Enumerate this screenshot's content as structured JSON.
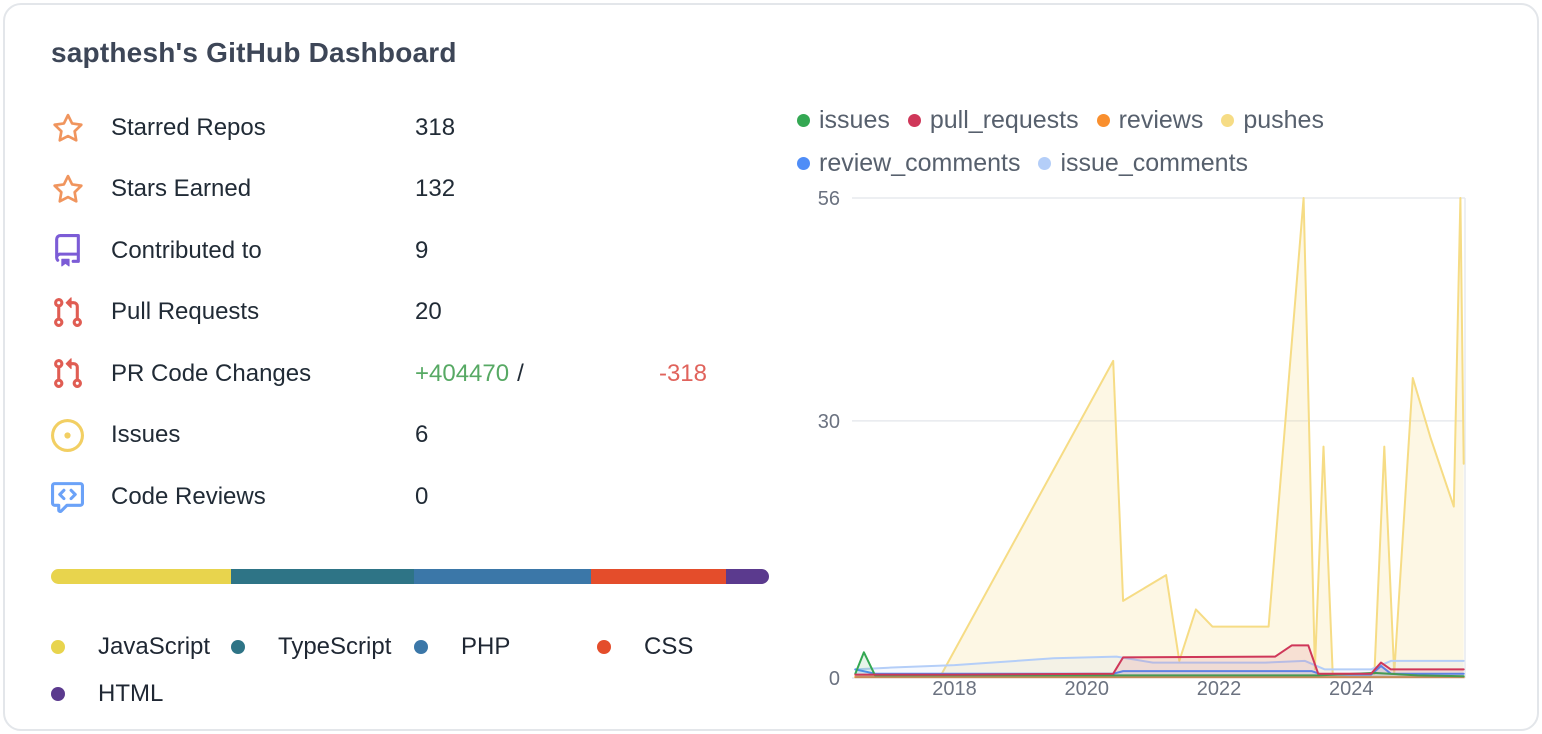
{
  "card": {
    "title": "sapthesh's GitHub Dashboard"
  },
  "stats": {
    "additions_color": "#57a964",
    "deletions_color": "#e0635c",
    "items": [
      {
        "label": "Starred Repos",
        "value": "318",
        "icon": "star-icon",
        "color": "#f0955e"
      },
      {
        "label": "Stars Earned",
        "value": "132",
        "icon": "star-icon",
        "color": "#f0955e"
      },
      {
        "label": "Contributed to",
        "value": "9",
        "icon": "repo-icon",
        "color": "#7c5cd6"
      },
      {
        "label": "Pull Requests",
        "value": "20",
        "icon": "git-pull-request-icon",
        "color": "#e05d53"
      },
      {
        "label": "PR Code Changes",
        "icon": "git-pull-request-icon",
        "color": "#e05d53",
        "additions": "+404470",
        "separator": "/",
        "deletions": "-318"
      },
      {
        "label": "Issues",
        "value": "6",
        "icon": "issue-icon",
        "color": "#f2cf63"
      },
      {
        "label": "Code Reviews",
        "value": "0",
        "icon": "code-review-icon",
        "color": "#6ba2f8"
      }
    ]
  },
  "languages": {
    "bar": [
      {
        "name": "JavaScript",
        "color": "#e8d44d",
        "percent": 25.1
      },
      {
        "name": "TypeScript",
        "color": "#2e7486",
        "percent": 25.5
      },
      {
        "name": "PHP",
        "color": "#3b77a8",
        "percent": 24.6
      },
      {
        "name": "CSS",
        "color": "#e44d2b",
        "percent": 18.8
      },
      {
        "name": "HTML",
        "color": "#5b3a8e",
        "percent": 6.0
      }
    ]
  },
  "chart_data": {
    "type": "area",
    "title": "",
    "xlabel": "",
    "ylabel": "",
    "xlim": [
      2016.45,
      2025.72
    ],
    "ylim": [
      0,
      56
    ],
    "yticks": [
      0,
      30,
      56
    ],
    "xticks": [
      2018,
      2020,
      2022,
      2024
    ],
    "grid": true,
    "legend_position": "top",
    "draw_order": [
      "pushes",
      "reviews",
      "issue_comments",
      "review_comments",
      "issues",
      "pull_requests"
    ],
    "series": [
      {
        "name": "issues",
        "color": "#34a853",
        "fill_opacity": 0.12,
        "points": [
          [
            2016.5,
            0.5
          ],
          [
            2016.63,
            3
          ],
          [
            2016.8,
            0.3
          ],
          [
            2018,
            0.3
          ],
          [
            2020,
            0.3
          ],
          [
            2022,
            0.3
          ],
          [
            2023.5,
            0.3
          ],
          [
            2024.35,
            0.6
          ],
          [
            2025,
            0.3
          ],
          [
            2025.7,
            0.2
          ]
        ]
      },
      {
        "name": "pull_requests",
        "color": "#cf3759",
        "fill_opacity": 0.12,
        "points": [
          [
            2016.5,
            0.4
          ],
          [
            2018,
            0.4
          ],
          [
            2020.4,
            0.5
          ],
          [
            2020.55,
            2.4
          ],
          [
            2022.85,
            2.5
          ],
          [
            2023.1,
            3.8
          ],
          [
            2023.35,
            3.8
          ],
          [
            2023.5,
            0.5
          ],
          [
            2024.3,
            0.5
          ],
          [
            2024.45,
            1.8
          ],
          [
            2024.6,
            1
          ],
          [
            2025.7,
            1
          ]
        ]
      },
      {
        "name": "reviews",
        "color": "#f98f2e",
        "fill_opacity": 0.12,
        "points": [
          [
            2016.5,
            0.1
          ],
          [
            2025.7,
            0.1
          ]
        ]
      },
      {
        "name": "pushes",
        "color": "#f6dc85",
        "fill_opacity": 0.22,
        "points": [
          [
            2016.5,
            0.2
          ],
          [
            2017.8,
            0.4
          ],
          [
            2020.4,
            37
          ],
          [
            2020.55,
            9
          ],
          [
            2021.2,
            12
          ],
          [
            2021.4,
            2
          ],
          [
            2021.65,
            8
          ],
          [
            2021.9,
            6
          ],
          [
            2022.75,
            6
          ],
          [
            2023.28,
            56
          ],
          [
            2023.45,
            1
          ],
          [
            2023.58,
            27
          ],
          [
            2023.72,
            0.5
          ],
          [
            2024.35,
            0.5
          ],
          [
            2024.5,
            27
          ],
          [
            2024.65,
            0.5
          ],
          [
            2024.93,
            35
          ],
          [
            2025.2,
            28
          ],
          [
            2025.55,
            20
          ],
          [
            2025.65,
            56
          ],
          [
            2025.7,
            25
          ]
        ]
      },
      {
        "name": "review_comments",
        "color": "#4f8df7",
        "fill_opacity": 0.12,
        "points": [
          [
            2016.5,
            1
          ],
          [
            2016.8,
            0.5
          ],
          [
            2020.4,
            0.5
          ],
          [
            2020.55,
            0.8
          ],
          [
            2023.4,
            0.8
          ],
          [
            2023.55,
            0.4
          ],
          [
            2024.3,
            0.4
          ],
          [
            2024.45,
            1.4
          ],
          [
            2024.6,
            0.5
          ],
          [
            2025.7,
            0.5
          ]
        ]
      },
      {
        "name": "issue_comments",
        "color": "#b4cef8",
        "fill_opacity": 0.12,
        "points": [
          [
            2016.5,
            1
          ],
          [
            2017,
            1.2
          ],
          [
            2018,
            1.5
          ],
          [
            2019.5,
            2.3
          ],
          [
            2020.45,
            2.5
          ],
          [
            2021,
            1.8
          ],
          [
            2022.7,
            1.8
          ],
          [
            2023.3,
            2
          ],
          [
            2023.6,
            1
          ],
          [
            2024.3,
            1
          ],
          [
            2024.6,
            2
          ],
          [
            2025.7,
            2
          ]
        ]
      }
    ]
  }
}
